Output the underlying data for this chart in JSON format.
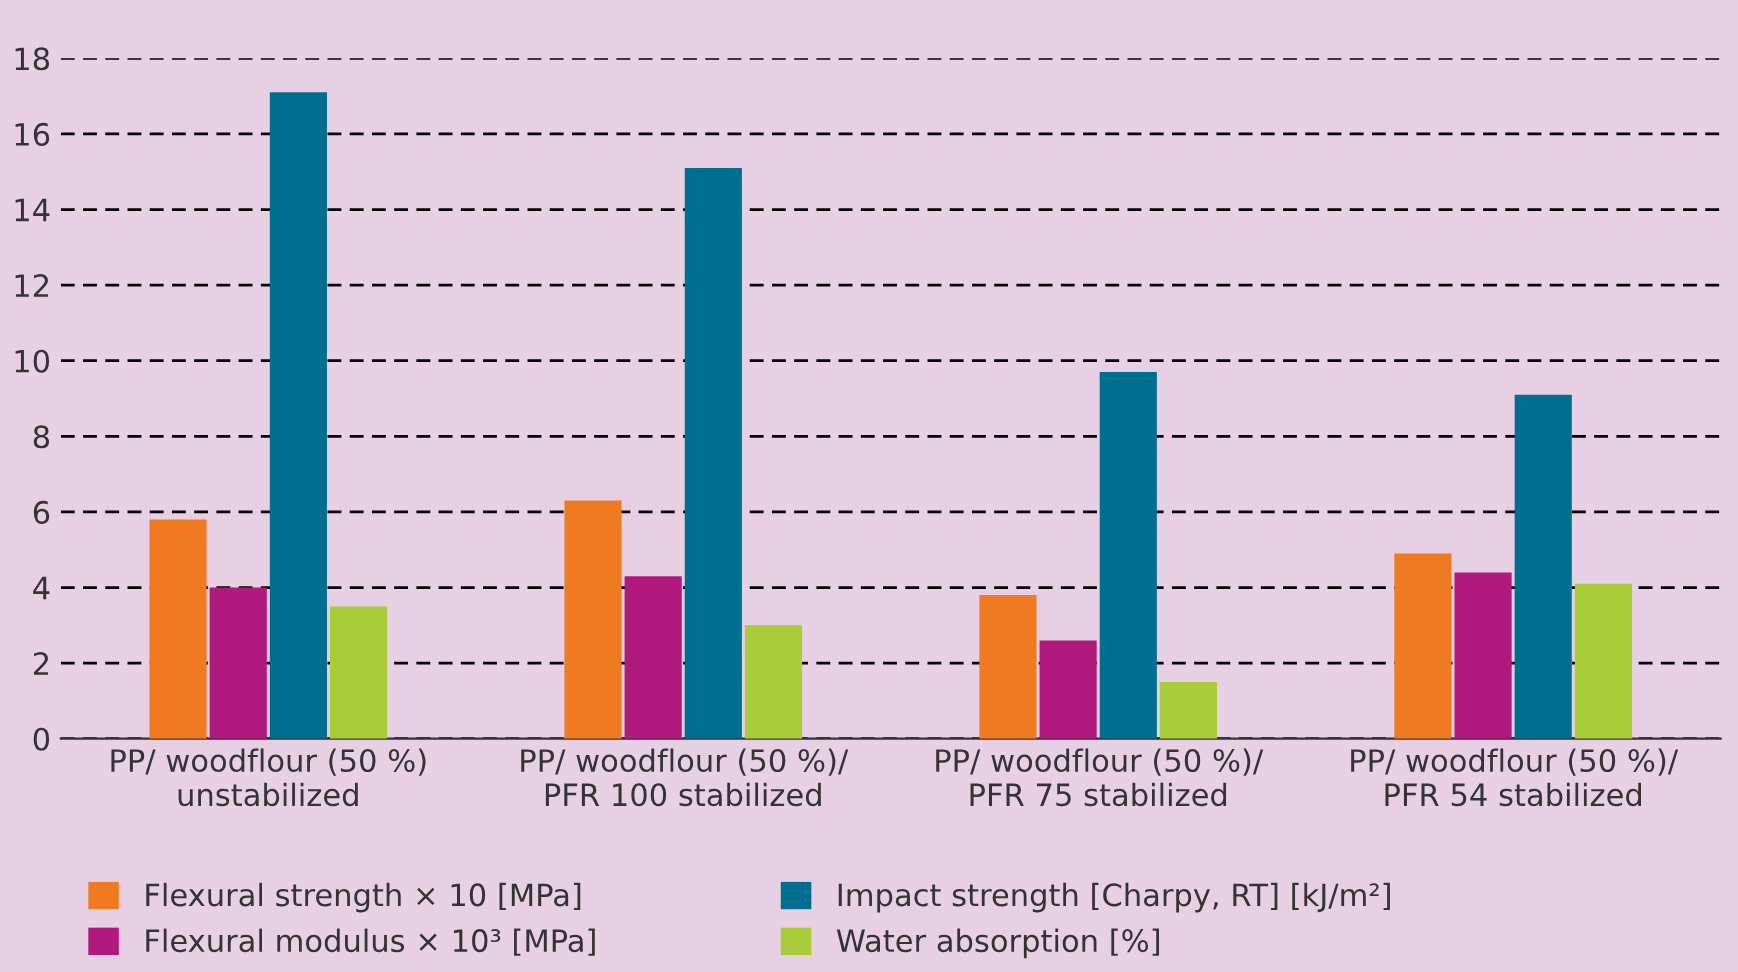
{
  "chart_data": {
    "type": "bar",
    "categories": [
      "PP/ woodflour (50 %)\nunstabilized",
      "PP/ woodflour (50 %)/\nPFR 100 stabilized",
      "PP/ woodflour (50 %)/\nPFR 75 stabilized",
      "PP/ woodflour (50 %)/\nPFR 54 stabilized"
    ],
    "series": [
      {
        "name": "Flexural strength × 10 [MPa]",
        "color": "#f07a22",
        "values": [
          5.8,
          6.3,
          3.8,
          4.9
        ]
      },
      {
        "name": "Flexural modulus × 10³ [MPa]",
        "color": "#b0197e",
        "values": [
          4.0,
          4.3,
          2.6,
          4.4
        ]
      },
      {
        "name": "Impact strength [Charpy, RT] [kJ/m²]",
        "color": "#006e8f",
        "values": [
          17.1,
          15.1,
          9.7,
          9.1
        ]
      },
      {
        "name": "Water absorption [%]",
        "color": "#a8cc3a",
        "values": [
          3.5,
          3.0,
          1.5,
          4.1
        ]
      }
    ],
    "ylim": [
      0,
      18
    ],
    "yticks": [
      0,
      2,
      4,
      6,
      8,
      10,
      12,
      14,
      16,
      18
    ],
    "grid": "y",
    "legend": "bottom"
  }
}
